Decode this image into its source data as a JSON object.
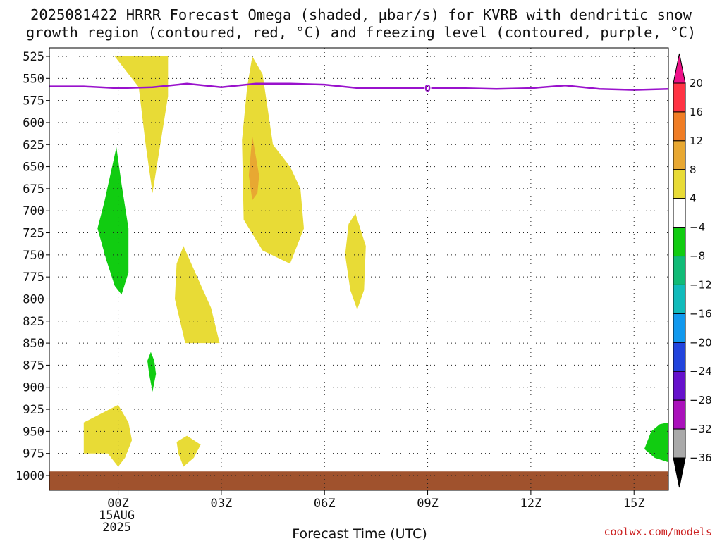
{
  "chart_data": {
    "type": "contour-timeheight",
    "title_lines": [
      "2025081422 HRRR Forecast Omega (shaded, μbar/s) for KVRB with dendritic snow",
      "growth region (contoured, red, °C) and freezing level (contoured, purple, °C)"
    ],
    "xlabel": "Forecast Time (UTC)",
    "ylabel": "",
    "credit": "coolwx.com/models",
    "x_axis": {
      "unit": "hours from 2025-08-15 00Z",
      "range": [
        -2,
        16
      ],
      "ticks": [
        {
          "value": 0,
          "label": "00Z",
          "sub": [
            "15AUG",
            "2025"
          ]
        },
        {
          "value": 3,
          "label": "03Z",
          "sub": []
        },
        {
          "value": 6,
          "label": "06Z",
          "sub": []
        },
        {
          "value": 9,
          "label": "09Z",
          "sub": []
        },
        {
          "value": 12,
          "label": "12Z",
          "sub": []
        },
        {
          "value": 15,
          "label": "15Z",
          "sub": []
        }
      ]
    },
    "y_axis": {
      "unit": "hPa",
      "range": [
        1000,
        525
      ],
      "ticks": [
        525,
        550,
        575,
        600,
        625,
        650,
        675,
        700,
        725,
        750,
        775,
        800,
        825,
        850,
        875,
        900,
        925,
        950,
        975,
        1000
      ]
    },
    "grid": true,
    "colorbar": {
      "levels": [
        20,
        16,
        12,
        8,
        4,
        -4,
        -8,
        -12,
        -16,
        -20,
        -24,
        -28,
        -32,
        -36
      ],
      "bands": [
        {
          "from": 16,
          "to": 20,
          "color": "#ff3344"
        },
        {
          "from": 12,
          "to": 16,
          "color": "#f07d25"
        },
        {
          "from": 8,
          "to": 12,
          "color": "#e8a832"
        },
        {
          "from": 4,
          "to": 8,
          "color": "#e8db36"
        },
        {
          "from": -4,
          "to": 4,
          "color": "#ffffff"
        },
        {
          "from": -8,
          "to": -4,
          "color": "#11cc11"
        },
        {
          "from": -12,
          "to": -8,
          "color": "#11bb77"
        },
        {
          "from": -16,
          "to": -12,
          "color": "#11bbbb"
        },
        {
          "from": -20,
          "to": -16,
          "color": "#1199ee"
        },
        {
          "from": -24,
          "to": -20,
          "color": "#2244dd"
        },
        {
          "from": -28,
          "to": -24,
          "color": "#6611cc"
        },
        {
          "from": -32,
          "to": -28,
          "color": "#aa11bb"
        },
        {
          "from": -36,
          "to": -32,
          "color": "#aaaaaa"
        }
      ],
      "top_arrow_color": "#ee1188",
      "bottom_arrow_color": "#000000"
    },
    "freezing_level": {
      "label": "0",
      "color": "#9911cc",
      "x": [
        -2,
        -1,
        0,
        1,
        2,
        3,
        4,
        5,
        6,
        7,
        8,
        9,
        10,
        11,
        12,
        13,
        14,
        15,
        16
      ],
      "p": [
        559,
        559,
        561,
        560,
        556,
        560,
        556,
        556,
        557,
        561,
        561,
        561,
        561,
        562,
        561,
        558,
        562,
        563,
        562
      ]
    },
    "omega_regions": [
      {
        "value": "4-8",
        "color": "#e8db36",
        "points": [
          [
            -0.1,
            525
          ],
          [
            1.45,
            525
          ],
          [
            1.45,
            570
          ],
          [
            1.0,
            680
          ],
          [
            0.8,
            625
          ],
          [
            0.6,
            560
          ]
        ]
      },
      {
        "value": "4-8",
        "color": "#e8db36",
        "points": [
          [
            3.9,
            525
          ],
          [
            4.2,
            545
          ],
          [
            4.5,
            625
          ],
          [
            5.0,
            650
          ],
          [
            5.3,
            675
          ],
          [
            5.4,
            720
          ],
          [
            5.0,
            760
          ],
          [
            4.2,
            745
          ],
          [
            3.65,
            710
          ],
          [
            3.6,
            620
          ],
          [
            3.75,
            560
          ]
        ]
      },
      {
        "value": "8-12",
        "color": "#e8a832",
        "points": [
          [
            3.9,
            615
          ],
          [
            4.1,
            660
          ],
          [
            4.05,
            680
          ],
          [
            3.9,
            688
          ],
          [
            3.8,
            660
          ]
        ]
      },
      {
        "value": "4-8",
        "color": "#e8db36",
        "points": [
          [
            1.9,
            740
          ],
          [
            2.3,
            775
          ],
          [
            2.7,
            810
          ],
          [
            2.95,
            850
          ],
          [
            1.95,
            850
          ],
          [
            1.65,
            800
          ],
          [
            1.7,
            760
          ]
        ]
      },
      {
        "value": "4-8",
        "color": "#e8db36",
        "points": [
          [
            6.9,
            703
          ],
          [
            7.2,
            740
          ],
          [
            7.15,
            790
          ],
          [
            6.95,
            812
          ],
          [
            6.75,
            790
          ],
          [
            6.6,
            750
          ],
          [
            6.7,
            715
          ]
        ]
      },
      {
        "value": "4-8",
        "color": "#e8db36",
        "points": [
          [
            -1.0,
            940
          ],
          [
            0.0,
            920
          ],
          [
            0.3,
            940
          ],
          [
            0.4,
            960
          ],
          [
            0.2,
            980
          ],
          [
            0.0,
            990
          ],
          [
            -0.3,
            975
          ],
          [
            -1.0,
            975
          ]
        ]
      },
      {
        "value": "4-8",
        "color": "#e8db36",
        "points": [
          [
            1.7,
            962
          ],
          [
            2.0,
            955
          ],
          [
            2.4,
            965
          ],
          [
            2.2,
            980
          ],
          [
            1.9,
            990
          ],
          [
            1.75,
            975
          ]
        ]
      },
      {
        "value": "-8 to -4",
        "color": "#11cc11",
        "points": [
          [
            -0.05,
            628
          ],
          [
            0.1,
            670
          ],
          [
            0.3,
            720
          ],
          [
            0.3,
            770
          ],
          [
            0.1,
            795
          ],
          [
            -0.1,
            785
          ],
          [
            -0.35,
            755
          ],
          [
            -0.6,
            720
          ],
          [
            -0.4,
            690
          ]
        ]
      },
      {
        "value": "-8 to -4",
        "color": "#11cc11",
        "points": [
          [
            0.95,
            860
          ],
          [
            1.05,
            870
          ],
          [
            1.1,
            885
          ],
          [
            1.0,
            905
          ],
          [
            0.9,
            885
          ],
          [
            0.85,
            870
          ]
        ]
      },
      {
        "value": "-8 to -4",
        "color": "#11cc11",
        "points": [
          [
            16.0,
            940
          ],
          [
            16.0,
            985
          ],
          [
            15.6,
            980
          ],
          [
            15.3,
            970
          ],
          [
            15.5,
            950
          ],
          [
            15.75,
            942
          ]
        ]
      }
    ],
    "ground_strip": {
      "color": "#a0522d",
      "x": [
        -2,
        16
      ],
      "p": [
        993,
        1000
      ]
    }
  }
}
